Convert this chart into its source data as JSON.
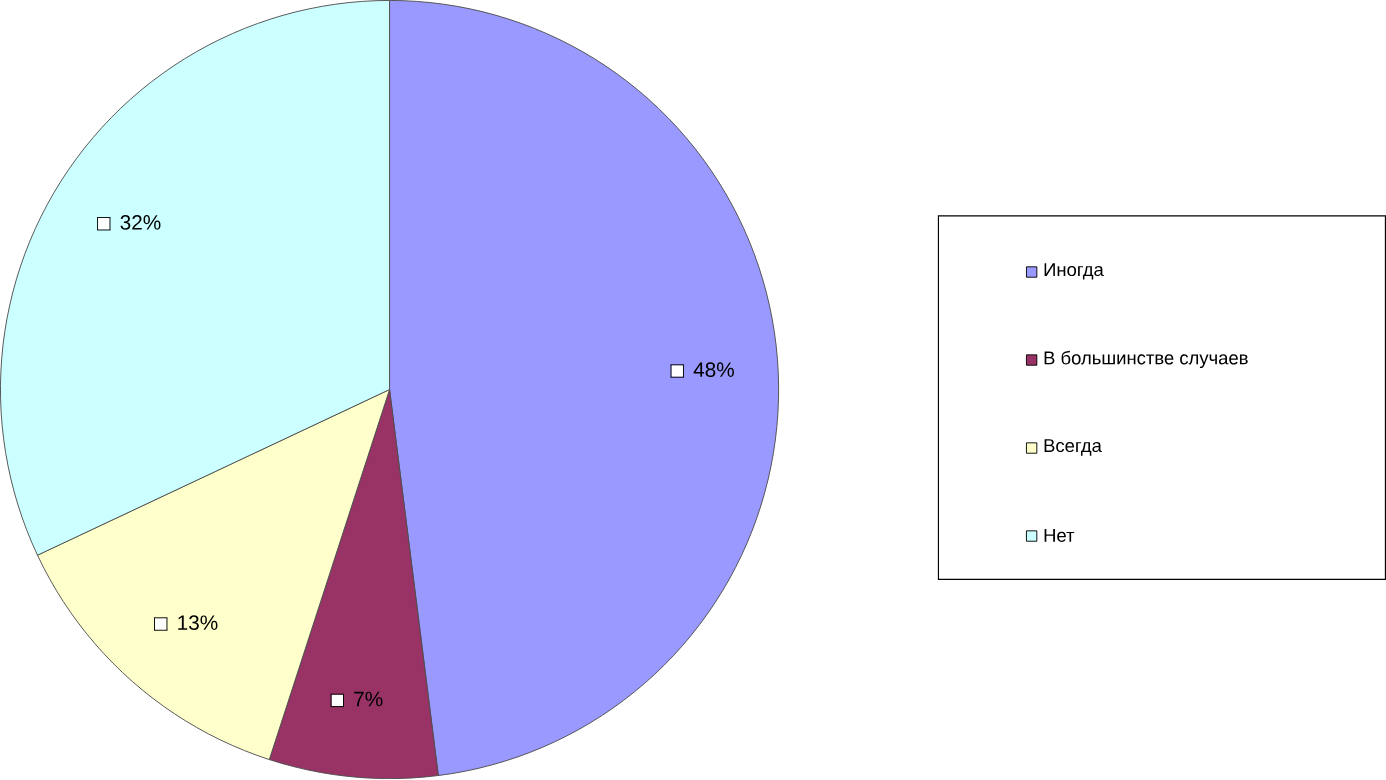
{
  "chart_data": {
    "type": "pie",
    "categories": [
      "Иногда",
      "В большинстве случаев",
      "Всегда",
      "Нет"
    ],
    "values": [
      48,
      7,
      13,
      32
    ],
    "colors": [
      "#9999ff",
      "#993366",
      "#ffffcc",
      "#ccffff"
    ],
    "value_labels": [
      "48%",
      "7%",
      "13%",
      "32%"
    ],
    "legend": "right"
  }
}
